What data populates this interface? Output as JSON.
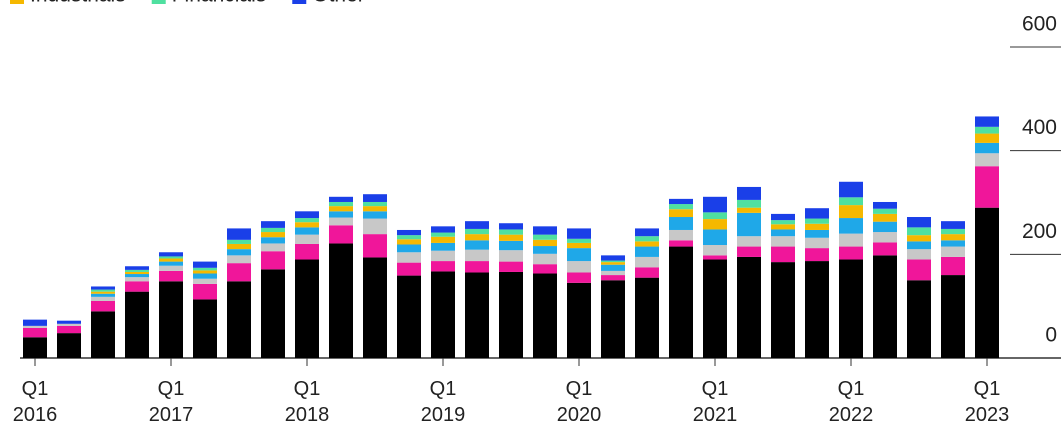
{
  "chart_data": {
    "type": "stacked-bar",
    "categories": [
      "Q1 2016",
      null,
      null,
      null,
      "Q1 2017",
      null,
      null,
      null,
      "Q1 2018",
      null,
      null,
      null,
      "Q1 2019",
      null,
      null,
      null,
      "Q1 2020",
      null,
      null,
      null,
      "Q1 2021",
      null,
      null,
      null,
      "Q1 2022",
      null,
      null,
      null,
      "Q1 2023"
    ],
    "series": [
      {
        "color": "#000000",
        "values": [
          40,
          48,
          90,
          128,
          148,
          113,
          148,
          171,
          190,
          221,
          194,
          159,
          167,
          165,
          166,
          163,
          145,
          150,
          155,
          215,
          190,
          195,
          185,
          187,
          190,
          198,
          150,
          160,
          290
        ]
      },
      {
        "color": "#f0169a",
        "values": [
          18,
          14,
          20,
          20,
          20,
          30,
          35,
          35,
          30,
          35,
          45,
          25,
          20,
          22,
          20,
          18,
          20,
          10,
          20,
          12,
          8,
          20,
          30,
          25,
          25,
          25,
          40,
          35,
          80
        ]
      },
      {
        "color": "#c8c8c8",
        "values": [
          4,
          4,
          8,
          8,
          10,
          10,
          15,
          15,
          18,
          15,
          30,
          20,
          20,
          22,
          22,
          20,
          22,
          8,
          20,
          20,
          20,
          20,
          20,
          20,
          25,
          20,
          20,
          20,
          25
        ]
      },
      {
        "color": "#1fa8e8",
        "values": [
          0,
          0,
          6,
          6,
          8,
          10,
          12,
          12,
          14,
          12,
          14,
          15,
          15,
          18,
          18,
          15,
          25,
          12,
          20,
          25,
          30,
          45,
          13,
          15,
          30,
          20,
          15,
          12,
          20
        ]
      },
      {
        "name": "Industrials",
        "color": "#f5b800",
        "values": [
          0,
          0,
          4,
          4,
          6,
          6,
          10,
          10,
          10,
          10,
          10,
          10,
          12,
          12,
          12,
          12,
          10,
          5,
          10,
          15,
          20,
          10,
          10,
          12,
          25,
          15,
          12,
          12,
          18
        ]
      },
      {
        "name": "Financials",
        "color": "#4fe0a0",
        "values": [
          0,
          0,
          4,
          4,
          4,
          5,
          8,
          8,
          8,
          8,
          8,
          8,
          8,
          10,
          10,
          10,
          8,
          3,
          10,
          10,
          13,
          15,
          8,
          10,
          15,
          10,
          15,
          10,
          13
        ]
      },
      {
        "name": "Other",
        "color": "#1a3fe8",
        "values": [
          12,
          6,
          6,
          7,
          8,
          12,
          22,
          13,
          13,
          10,
          15,
          10,
          12,
          15,
          12,
          16,
          20,
          10,
          15,
          10,
          30,
          25,
          12,
          20,
          30,
          13,
          20,
          15,
          20
        ]
      }
    ],
    "ylim": [
      0,
      600
    ],
    "yticks": [
      0,
      200,
      400,
      600
    ]
  }
}
